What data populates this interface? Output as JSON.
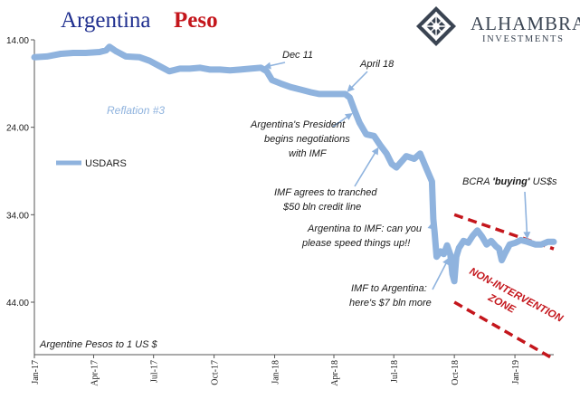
{
  "header": {
    "title_part1": "Argentina",
    "title_part2": "Peso",
    "title_part1_color": "#1f2f8f",
    "title_part2_color": "#c4161c"
  },
  "logo": {
    "name": "ALHAMBRA",
    "subtitle": "INVESTMENTS",
    "color": "#3a4452",
    "icon": "diamond-lattice-icon"
  },
  "chart_data": {
    "type": "line",
    "title": "Argentina Peso",
    "ylabel_note": "Argentine Pesos to 1 US $",
    "y_axis": {
      "inverted": true,
      "range": [
        14,
        50
      ],
      "ticks": [
        "14.00",
        "24.00",
        "34.00",
        "44.00"
      ],
      "tick_values": [
        14,
        24,
        34,
        44
      ]
    },
    "x_axis": {
      "range": [
        "2017-01-01",
        "2019-03-01"
      ],
      "ticks": [
        {
          "label": "Jan-17",
          "date": "2017-01-01"
        },
        {
          "label": "Apr-17",
          "date": "2017-04-01"
        },
        {
          "label": "Jul-17",
          "date": "2017-07-01"
        },
        {
          "label": "Oct-17",
          "date": "2017-10-01"
        },
        {
          "label": "Jan-18",
          "date": "2018-01-01"
        },
        {
          "label": "Apr-18",
          "date": "2018-04-01"
        },
        {
          "label": "Jul-18",
          "date": "2018-07-01"
        },
        {
          "label": "Oct-18",
          "date": "2018-10-01"
        },
        {
          "label": "Jan-19",
          "date": "2019-01-01"
        }
      ]
    },
    "grid": false,
    "legend": {
      "position": "left-middle"
    },
    "series": [
      {
        "name": "USDARS",
        "color": "#8fb3de",
        "points": [
          [
            "2017-01-01",
            16.0
          ],
          [
            "2017-01-20",
            15.9
          ],
          [
            "2017-02-10",
            15.6
          ],
          [
            "2017-03-01",
            15.5
          ],
          [
            "2017-03-20",
            15.5
          ],
          [
            "2017-04-10",
            15.4
          ],
          [
            "2017-04-20",
            15.2
          ],
          [
            "2017-04-25",
            14.8
          ],
          [
            "2017-05-05",
            15.3
          ],
          [
            "2017-05-20",
            15.9
          ],
          [
            "2017-06-10",
            16.0
          ],
          [
            "2017-06-25",
            16.4
          ],
          [
            "2017-07-10",
            17.0
          ],
          [
            "2017-07-25",
            17.6
          ],
          [
            "2017-08-10",
            17.3
          ],
          [
            "2017-08-25",
            17.3
          ],
          [
            "2017-09-10",
            17.2
          ],
          [
            "2017-09-25",
            17.4
          ],
          [
            "2017-10-10",
            17.4
          ],
          [
            "2017-10-25",
            17.5
          ],
          [
            "2017-11-10",
            17.4
          ],
          [
            "2017-11-25",
            17.3
          ],
          [
            "2017-12-11",
            17.2
          ],
          [
            "2017-12-20",
            17.6
          ],
          [
            "2017-12-28",
            18.6
          ],
          [
            "2018-01-10",
            19.0
          ],
          [
            "2018-01-25",
            19.4
          ],
          [
            "2018-02-10",
            19.7
          ],
          [
            "2018-02-25",
            20.0
          ],
          [
            "2018-03-10",
            20.2
          ],
          [
            "2018-03-25",
            20.2
          ],
          [
            "2018-04-10",
            20.2
          ],
          [
            "2018-04-18",
            20.2
          ],
          [
            "2018-04-25",
            20.6
          ],
          [
            "2018-05-03",
            22.2
          ],
          [
            "2018-05-10",
            23.5
          ],
          [
            "2018-05-20",
            24.8
          ],
          [
            "2018-06-01",
            25.0
          ],
          [
            "2018-06-10",
            26.0
          ],
          [
            "2018-06-20",
            27.0
          ],
          [
            "2018-06-28",
            28.2
          ],
          [
            "2018-07-05",
            28.6
          ],
          [
            "2018-07-20",
            27.3
          ],
          [
            "2018-08-01",
            27.6
          ],
          [
            "2018-08-10",
            27.0
          ],
          [
            "2018-08-20",
            28.8
          ],
          [
            "2018-08-28",
            30.2
          ],
          [
            "2018-08-30",
            34.5
          ],
          [
            "2018-09-01",
            36.0
          ],
          [
            "2018-09-04",
            38.8
          ],
          [
            "2018-09-10",
            38.2
          ],
          [
            "2018-09-15",
            38.5
          ],
          [
            "2018-09-20",
            37.5
          ],
          [
            "2018-09-25",
            38.6
          ],
          [
            "2018-09-28",
            40.8
          ],
          [
            "2018-10-01",
            41.6
          ],
          [
            "2018-10-04",
            38.8
          ],
          [
            "2018-10-08",
            37.8
          ],
          [
            "2018-10-15",
            37.0
          ],
          [
            "2018-10-22",
            37.2
          ],
          [
            "2018-10-29",
            36.4
          ],
          [
            "2018-11-05",
            35.8
          ],
          [
            "2018-11-12",
            36.5
          ],
          [
            "2018-11-19",
            37.4
          ],
          [
            "2018-11-26",
            37.0
          ],
          [
            "2018-12-03",
            37.6
          ],
          [
            "2018-12-08",
            37.9
          ],
          [
            "2018-12-12",
            39.2
          ],
          [
            "2018-12-17",
            38.4
          ],
          [
            "2018-12-24",
            37.4
          ],
          [
            "2019-01-02",
            37.2
          ],
          [
            "2019-01-10",
            36.9
          ],
          [
            "2019-01-20",
            37.1
          ],
          [
            "2019-02-01",
            37.4
          ],
          [
            "2019-02-10",
            37.4
          ],
          [
            "2019-02-20",
            37.1
          ],
          [
            "2019-03-01",
            37.1
          ]
        ]
      }
    ],
    "annotations": [
      {
        "text": "Dec 11",
        "style": "italic",
        "arrow_to": [
          "2017-12-11",
          17.2
        ]
      },
      {
        "text": "April 18",
        "style": "italic",
        "arrow_to": [
          "2018-04-18",
          20.2
        ]
      },
      {
        "text": "Reflation #3",
        "style": "italic",
        "color": "#8fb3de"
      },
      {
        "text": "Argentina's President begins negotiations with IMF",
        "style": "italic",
        "arrow_to": [
          "2018-05-03",
          22.2
        ]
      },
      {
        "text": "IMF agrees to tranched $50 bln credit line",
        "style": "italic",
        "arrow_to": [
          "2018-06-10",
          26.0
        ]
      },
      {
        "text": "Argentina to IMF: can you please speed things up!!",
        "style": "italic",
        "arrow_to": [
          "2018-08-30",
          34.5
        ]
      },
      {
        "text": "IMF to Argentina: here's $7 bln more",
        "style": "italic",
        "arrow_to": [
          "2018-09-25",
          38.6
        ]
      },
      {
        "text": "BCRA 'buying' US$s",
        "style": "italic",
        "emphasis": "buying",
        "arrow_to": [
          "2019-01-20",
          37.1
        ]
      },
      {
        "text": "NON-INTERVENTION ZONE",
        "style": "bold-italic",
        "color": "#c4161c"
      },
      {
        "text": "Argentine Pesos to 1 US $",
        "style": "italic"
      }
    ],
    "bands": [
      {
        "name": "non-intervention-zone",
        "color": "#c4161c",
        "style": "dashed",
        "upper": [
          [
            "2018-10-01",
            34.0
          ],
          [
            "2019-03-01",
            37.9
          ]
        ],
        "lower": [
          [
            "2018-10-01",
            44.0
          ],
          [
            "2019-03-01",
            50.5
          ]
        ]
      }
    ]
  },
  "text": {
    "dec11": "Dec 11",
    "april18": "April 18",
    "reflation": "Reflation #3",
    "pres_1": "Argentina's President",
    "pres_2": "begins negotiations",
    "pres_3": "with IMF",
    "imf50_1": "IMF agrees to tranched",
    "imf50_2": "$50 bln credit line",
    "speed_1": "Argentina to IMF: can you",
    "speed_2": "please speed things up!!",
    "seven_1": "IMF to Argentina:",
    "seven_2": "here's $7 bln more",
    "bcra_pre": "BCRA ",
    "bcra_em": "'buying'",
    "bcra_post": " US$s",
    "zone_1": "NON-INTERVENTION",
    "zone_2": "ZONE",
    "units": "Argentine Pesos to 1 US $",
    "legend": "USDARS"
  },
  "colors": {
    "line": "#8fb3de",
    "red": "#c4161c",
    "axis": "#555555",
    "text": "#1a1a1a"
  }
}
